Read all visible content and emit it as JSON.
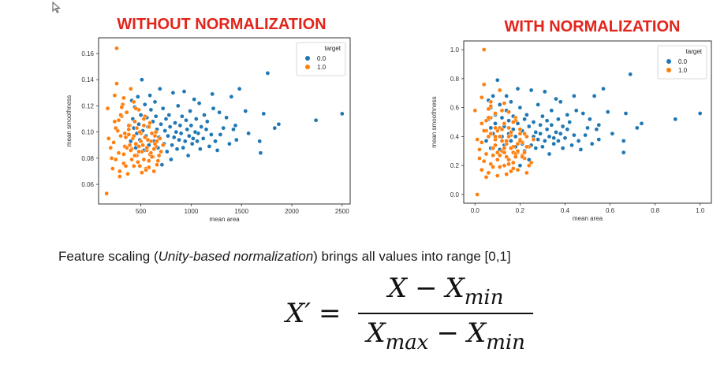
{
  "cursor_icon": "arrow-cursor-icon",
  "colors": {
    "class0": "#1f77b4",
    "class1": "#ff7f0e",
    "title": "#e3241b"
  },
  "chart_data": [
    {
      "type": "scatter",
      "title": "WITHOUT NORMALIZATION",
      "xlabel": "mean area",
      "ylabel": "mean smoothness",
      "xlim": [
        80,
        2580
      ],
      "ylim": [
        0.045,
        0.172
      ],
      "xticks": [
        500,
        1000,
        1500,
        2000,
        2500
      ],
      "xticklabels": [
        "500",
        "1000",
        "1500",
        "2000",
        "2500"
      ],
      "yticks": [
        0.06,
        0.08,
        0.1,
        0.12,
        0.14,
        0.16
      ],
      "yticklabels": [
        "0.06",
        "0.08",
        "0.10",
        "0.12",
        "0.14",
        "0.16"
      ],
      "grid": false,
      "legend": {
        "title": "target",
        "position": "top-right",
        "entries": [
          "0.0",
          "1.0"
        ]
      },
      "series": [
        {
          "name": "0.0",
          "color": "#1f77b4",
          "x": [
            1760,
            2500,
            2240,
            1870,
            1830,
            1680,
            1690,
            1720,
            1570,
            1540,
            1480,
            1450,
            1440,
            1420,
            1400,
            1380,
            1350,
            1320,
            1290,
            1280,
            1260,
            1240,
            1220,
            1210,
            1200,
            1180,
            1160,
            1150,
            1130,
            1120,
            1100,
            1090,
            1080,
            1070,
            1060,
            1050,
            1040,
            1030,
            1020,
            1010,
            1000,
            990,
            980,
            970,
            960,
            950,
            940,
            930,
            920,
            910,
            900,
            890,
            880,
            870,
            860,
            850,
            840,
            830,
            820,
            810,
            800,
            790,
            780,
            770,
            760,
            750,
            740,
            730,
            720,
            710,
            700,
            690,
            680,
            670,
            660,
            650,
            640,
            630,
            620,
            610,
            600,
            590,
            580,
            570,
            560,
            550,
            540,
            530,
            520,
            510,
            500,
            490,
            480,
            470,
            460,
            450,
            440,
            430,
            420,
            410,
            400
          ],
          "y": [
            0.145,
            0.114,
            0.109,
            0.106,
            0.103,
            0.093,
            0.084,
            0.114,
            0.099,
            0.116,
            0.133,
            0.094,
            0.105,
            0.102,
            0.127,
            0.091,
            0.111,
            0.103,
            0.098,
            0.115,
            0.086,
            0.093,
            0.118,
            0.129,
            0.098,
            0.089,
            0.108,
            0.102,
            0.113,
            0.095,
            0.104,
            0.087,
            0.122,
            0.099,
            0.093,
            0.11,
            0.1,
            0.125,
            0.095,
            0.091,
            0.105,
            0.116,
            0.097,
            0.082,
            0.102,
            0.109,
            0.093,
            0.131,
            0.088,
            0.112,
            0.099,
            0.105,
            0.094,
            0.12,
            0.087,
            0.1,
            0.107,
            0.096,
            0.13,
            0.09,
            0.079,
            0.104,
            0.113,
            0.097,
            0.085,
            0.11,
            0.101,
            0.091,
            0.118,
            0.075,
            0.106,
            0.133,
            0.096,
            0.088,
            0.102,
            0.112,
            0.123,
            0.093,
            0.108,
            0.099,
            0.117,
            0.128,
            0.09,
            0.104,
            0.111,
            0.097,
            0.121,
            0.086,
            0.101,
            0.14,
            0.113,
            0.094,
            0.106,
            0.127,
            0.099,
            0.088,
            0.119,
            0.103,
            0.11,
            0.124,
            0.093
          ]
        },
        {
          "name": "1.0",
          "color": "#ff7f0e",
          "x": [
            260,
            170,
            160,
            240,
            260,
            280,
            300,
            320,
            340,
            360,
            380,
            400,
            420,
            440,
            460,
            480,
            500,
            520,
            540,
            560,
            580,
            600,
            620,
            640,
            660,
            200,
            220,
            250,
            270,
            290,
            310,
            330,
            350,
            370,
            390,
            410,
            430,
            450,
            470,
            490,
            510,
            530,
            550,
            570,
            590,
            610,
            630,
            650,
            670,
            690,
            230,
            280,
            330,
            380,
            430,
            480,
            530,
            580,
            630,
            680,
            720,
            250,
            300,
            350,
            400,
            450,
            500,
            550,
            600,
            650,
            210,
            240,
            290,
            340,
            390,
            440,
            490,
            540,
            590,
            640,
            180,
            310,
            360,
            410,
            460,
            510,
            560,
            610,
            660,
            700,
            330,
            380,
            430,
            480,
            530,
            580
          ],
          "y": [
            0.164,
            0.118,
            0.053,
            0.128,
            0.137,
            0.109,
            0.097,
            0.121,
            0.089,
            0.115,
            0.102,
            0.133,
            0.095,
            0.108,
            0.082,
            0.117,
            0.099,
            0.09,
            0.112,
            0.086,
            0.104,
            0.093,
            0.081,
            0.097,
            0.075,
            0.088,
            0.072,
            0.079,
            0.101,
            0.07,
            0.112,
            0.083,
            0.096,
            0.068,
            0.105,
            0.087,
            0.123,
            0.091,
            0.077,
            0.1,
            0.085,
            0.11,
            0.072,
            0.094,
            0.083,
            0.099,
            0.07,
            0.089,
            0.078,
            0.095,
            0.092,
            0.084,
            0.076,
            0.098,
            0.074,
            0.089,
            0.105,
            0.078,
            0.087,
            0.082,
            0.09,
            0.103,
            0.113,
            0.074,
            0.086,
            0.118,
            0.093,
            0.071,
            0.084,
            0.1,
            0.08,
            0.108,
            0.066,
            0.099,
            0.09,
            0.082,
            0.074,
            0.096,
            0.107,
            0.091,
            0.095,
            0.119,
            0.088,
            0.079,
            0.103,
            0.069,
            0.088,
            0.081,
            0.093,
            0.085,
            0.126,
            0.105,
            0.097,
            0.085,
            0.079,
            0.073
          ]
        }
      ]
    },
    {
      "type": "scatter",
      "title": "WITH NORMALIZATION",
      "xlabel": "mean area",
      "ylabel": "mean smoothness",
      "xlim": [
        -0.05,
        1.05
      ],
      "ylim": [
        -0.06,
        1.06
      ],
      "xticks": [
        0.0,
        0.2,
        0.4,
        0.6,
        0.8,
        1.0
      ],
      "xticklabels": [
        "0.0",
        "0.2",
        "0.4",
        "0.6",
        "0.8",
        "1.0"
      ],
      "yticks": [
        0.0,
        0.2,
        0.4,
        0.6,
        0.8,
        1.0
      ],
      "yticklabels": [
        "0.0",
        "0.2",
        "0.4",
        "0.6",
        "0.8",
        "1.0"
      ],
      "grid": false,
      "legend": {
        "title": "target",
        "position": "top-right",
        "entries": [
          "0.0",
          "1.0"
        ]
      },
      "series": [
        {
          "name": "0.0",
          "color": "#1f77b4",
          "x": [
            0.69,
            1.0,
            0.89,
            0.74,
            0.72,
            0.66,
            0.66,
            0.67,
            0.61,
            0.59,
            0.57,
            0.55,
            0.55,
            0.54,
            0.53,
            0.52,
            0.51,
            0.5,
            0.49,
            0.48,
            0.47,
            0.46,
            0.45,
            0.44,
            0.44,
            0.43,
            0.42,
            0.41,
            0.41,
            0.4,
            0.39,
            0.39,
            0.38,
            0.38,
            0.37,
            0.37,
            0.36,
            0.36,
            0.35,
            0.35,
            0.34,
            0.34,
            0.33,
            0.33,
            0.32,
            0.32,
            0.31,
            0.31,
            0.3,
            0.3,
            0.29,
            0.29,
            0.28,
            0.28,
            0.27,
            0.27,
            0.26,
            0.26,
            0.25,
            0.25,
            0.24,
            0.24,
            0.23,
            0.23,
            0.22,
            0.22,
            0.21,
            0.21,
            0.2,
            0.2,
            0.19,
            0.19,
            0.18,
            0.18,
            0.17,
            0.17,
            0.16,
            0.16,
            0.15,
            0.15,
            0.14,
            0.14,
            0.13,
            0.13,
            0.12,
            0.12,
            0.11,
            0.11,
            0.1,
            0.1,
            0.09,
            0.09,
            0.09,
            0.08,
            0.08,
            0.07,
            0.07,
            0.07,
            0.06,
            0.06,
            0.05
          ],
          "y": [
            0.83,
            0.56,
            0.52,
            0.49,
            0.46,
            0.37,
            0.29,
            0.56,
            0.42,
            0.57,
            0.73,
            0.38,
            0.48,
            0.45,
            0.68,
            0.35,
            0.52,
            0.46,
            0.41,
            0.56,
            0.31,
            0.37,
            0.58,
            0.68,
            0.41,
            0.34,
            0.5,
            0.45,
            0.55,
            0.39,
            0.47,
            0.32,
            0.64,
            0.42,
            0.37,
            0.52,
            0.43,
            0.66,
            0.39,
            0.35,
            0.48,
            0.58,
            0.4,
            0.28,
            0.45,
            0.51,
            0.37,
            0.71,
            0.33,
            0.54,
            0.42,
            0.48,
            0.38,
            0.62,
            0.32,
            0.43,
            0.5,
            0.4,
            0.72,
            0.34,
            0.24,
            0.47,
            0.55,
            0.4,
            0.3,
            0.52,
            0.44,
            0.35,
            0.6,
            0.2,
            0.49,
            0.73,
            0.4,
            0.33,
            0.45,
            0.54,
            0.64,
            0.37,
            0.51,
            0.42,
            0.58,
            0.68,
            0.34,
            0.47,
            0.53,
            0.4,
            0.62,
            0.31,
            0.44,
            0.79,
            0.55,
            0.38,
            0.49,
            0.68,
            0.42,
            0.32,
            0.6,
            0.46,
            0.52,
            0.65,
            0.37
          ]
        },
        {
          "name": "1.0",
          "color": "#ff7f0e",
          "x": [
            0.04,
            0.0,
            0.01,
            0.03,
            0.04,
            0.05,
            0.06,
            0.07,
            0.08,
            0.09,
            0.1,
            0.11,
            0.12,
            0.13,
            0.14,
            0.15,
            0.16,
            0.17,
            0.18,
            0.19,
            0.2,
            0.21,
            0.22,
            0.23,
            0.24,
            0.02,
            0.03,
            0.04,
            0.05,
            0.06,
            0.07,
            0.08,
            0.09,
            0.1,
            0.11,
            0.12,
            0.13,
            0.14,
            0.15,
            0.16,
            0.17,
            0.18,
            0.19,
            0.2,
            0.21,
            0.22,
            0.23,
            0.24,
            0.25,
            0.26,
            0.03,
            0.05,
            0.07,
            0.09,
            0.11,
            0.13,
            0.15,
            0.17,
            0.19,
            0.21,
            0.23,
            0.04,
            0.06,
            0.08,
            0.1,
            0.12,
            0.14,
            0.16,
            0.18,
            0.2,
            0.02,
            0.03,
            0.05,
            0.07,
            0.09,
            0.11,
            0.13,
            0.15,
            0.17,
            0.19,
            0.01,
            0.06,
            0.08,
            0.1,
            0.12,
            0.14,
            0.16,
            0.18,
            0.2,
            0.22,
            0.07,
            0.09,
            0.11,
            0.13,
            0.15,
            0.17
          ],
          "y": [
            1.0,
            0.58,
            0.0,
            0.67,
            0.76,
            0.51,
            0.4,
            0.61,
            0.32,
            0.56,
            0.44,
            0.72,
            0.37,
            0.49,
            0.26,
            0.57,
            0.41,
            0.33,
            0.53,
            0.29,
            0.45,
            0.36,
            0.25,
            0.4,
            0.2,
            0.31,
            0.17,
            0.23,
            0.44,
            0.15,
            0.53,
            0.27,
            0.38,
            0.13,
            0.46,
            0.3,
            0.63,
            0.35,
            0.21,
            0.43,
            0.29,
            0.51,
            0.17,
            0.38,
            0.27,
            0.42,
            0.15,
            0.33,
            0.22,
            0.38,
            0.36,
            0.28,
            0.21,
            0.4,
            0.19,
            0.32,
            0.46,
            0.22,
            0.3,
            0.26,
            0.33,
            0.44,
            0.53,
            0.19,
            0.29,
            0.58,
            0.37,
            0.16,
            0.28,
            0.42,
            0.25,
            0.49,
            0.12,
            0.42,
            0.34,
            0.27,
            0.2,
            0.4,
            0.5,
            0.35,
            0.38,
            0.59,
            0.32,
            0.24,
            0.45,
            0.14,
            0.32,
            0.26,
            0.37,
            0.29,
            0.64,
            0.46,
            0.4,
            0.29,
            0.24,
            0.18
          ]
        }
      ]
    }
  ],
  "caption": {
    "before": "Feature scaling (",
    "emphasis": "Unity-based normalization",
    "after": ") brings all values into range [0,1]"
  },
  "formula": {
    "lhs": "X′",
    "equals": "=",
    "num_var": "X",
    "minus": "−",
    "num_sub_var": "X",
    "min_sub": "min",
    "den_var1": "X",
    "max_sub": "max",
    "den_var2": "X",
    "den_min_sub": "min"
  }
}
